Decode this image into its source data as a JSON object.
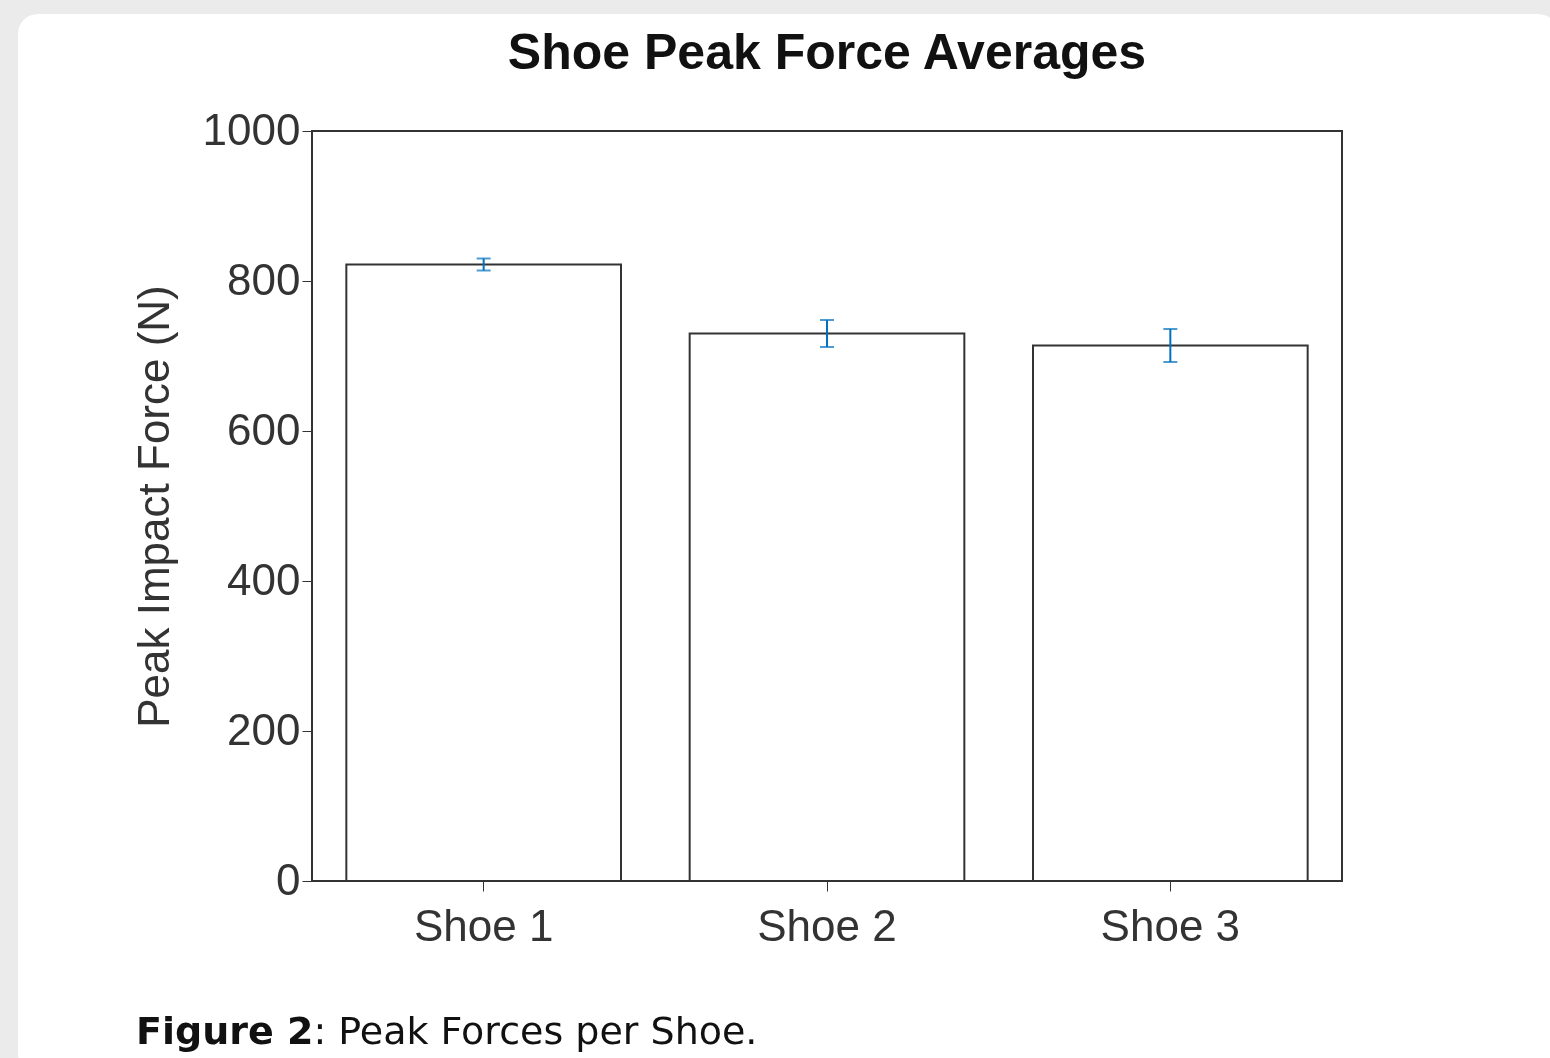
{
  "chart_data": {
    "type": "bar",
    "title": "Shoe Peak Force Averages",
    "ylabel": "Peak Impact Force (N)",
    "categories": [
      "Shoe 1",
      "Shoe 2",
      "Shoe 3"
    ],
    "values": [
      822,
      730,
      714
    ],
    "errors": [
      8,
      18,
      22
    ],
    "color": "#ffffff",
    "ylim": [
      0,
      1000
    ],
    "yticks": [
      0,
      200,
      400,
      600,
      800,
      1000
    ],
    "annotations": [
      "Figure 2: Peak Forces per Shoe."
    ]
  }
}
